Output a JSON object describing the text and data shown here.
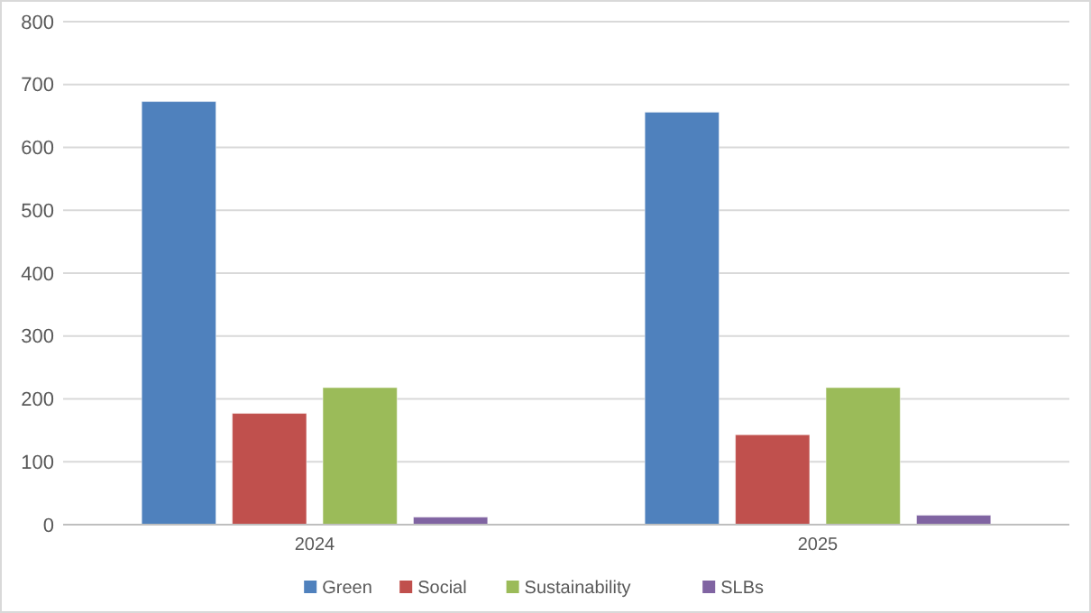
{
  "chart_data": {
    "type": "bar",
    "categories": [
      "2024",
      "2025"
    ],
    "series": [
      {
        "name": "Green",
        "color": "#4f81bd",
        "values": [
          673,
          656
        ]
      },
      {
        "name": "Social",
        "color": "#c0504d",
        "values": [
          177,
          143
        ]
      },
      {
        "name": "Sustainability",
        "color": "#9bbb59",
        "values": [
          218,
          218
        ]
      },
      {
        "name": "SLBs",
        "color": "#8064a2",
        "values": [
          12,
          15
        ]
      }
    ],
    "ylim": [
      0,
      800
    ],
    "yticks": [
      0,
      100,
      200,
      300,
      400,
      500,
      600,
      700,
      800
    ],
    "grid": "y",
    "legend": "bottom"
  }
}
